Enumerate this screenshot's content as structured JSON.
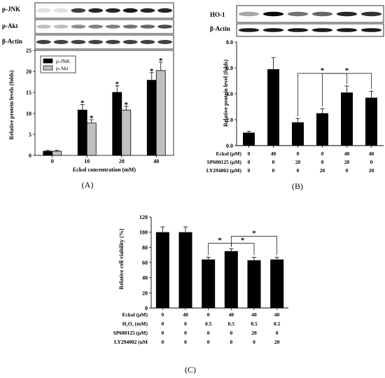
{
  "panels": {
    "A": "(A)",
    "B": "(B)",
    "C": "(C)"
  },
  "panelA": {
    "blots": [
      "p-JNK",
      "p-Akt",
      "β-Actin"
    ],
    "xlabel": "Eckol concentration (mM)",
    "ylabel": "Relative protein levels (folds)"
  },
  "panelB": {
    "blots": [
      "HO-1",
      "β-Actin"
    ],
    "ylabel": "Relative protein level (folds)"
  },
  "panelC": {
    "ylabel": "Relative cell viability (%)"
  },
  "chart_data": [
    {
      "type": "bar",
      "panel": "A",
      "categories": [
        "0",
        "10",
        "20",
        "40"
      ],
      "series": [
        {
          "name": "p-JNK",
          "values": [
            1.0,
            10.8,
            15.0,
            17.9
          ],
          "errors": [
            0.2,
            1.3,
            1.6,
            1.8
          ],
          "color": "#000000"
        },
        {
          "name": "p-Akt",
          "values": [
            1.0,
            7.7,
            10.8,
            20.2
          ],
          "errors": [
            0.2,
            0.8,
            0.9,
            2.0
          ],
          "color": "#c0c0c0"
        }
      ],
      "significance": [
        {
          "category": 1,
          "series": 0,
          "label": "*"
        },
        {
          "category": 1,
          "series": 1,
          "label": "*"
        },
        {
          "category": 2,
          "series": 0,
          "label": "*"
        },
        {
          "category": 2,
          "series": 1,
          "label": "*"
        },
        {
          "category": 3,
          "series": 0,
          "label": "*"
        },
        {
          "category": 3,
          "series": 1,
          "label": "*"
        }
      ],
      "xlabel": "Eckol concentration (mM)",
      "ylabel": "Relative protein levels (folds)",
      "ylim": [
        0,
        25
      ],
      "yticks": [
        "0",
        "5",
        "10",
        "15",
        "20",
        "25"
      ],
      "legend": "top-left"
    },
    {
      "type": "bar",
      "panel": "B",
      "values": [
        1.0,
        5.9,
        1.8,
        2.5,
        4.1,
        3.7
      ],
      "errors": [
        0.1,
        0.9,
        0.3,
        0.35,
        0.5,
        0.5
      ],
      "conditions": [
        {
          "label": "Eckol  (μM)",
          "values": [
            "0",
            "40",
            "0",
            "0",
            "40",
            "40"
          ]
        },
        {
          "label": "SP600125 (μM)",
          "values": [
            "0",
            "0",
            "20",
            "0",
            "20",
            "0"
          ]
        },
        {
          "label": "LY294002 (μM)",
          "values": [
            "0",
            "0",
            "0",
            "20",
            "0",
            "20"
          ]
        }
      ],
      "comparisons": [
        {
          "from": 2,
          "to": 4,
          "label": "*"
        },
        {
          "from": 3,
          "to": 5,
          "label": "*"
        }
      ],
      "ylabel": "Relative protein level (folds)",
      "ylim": [
        0,
        8
      ],
      "yticks": [
        "0.0",
        "2.0",
        "4.0",
        "6.0",
        "8.0"
      ]
    },
    {
      "type": "bar",
      "panel": "C",
      "values": [
        100,
        100,
        64,
        75,
        63,
        64
      ],
      "errors": [
        7,
        7,
        3,
        3,
        4,
        3
      ],
      "conditions": [
        {
          "label": "Eckol  (μM)",
          "values": [
            "0",
            "40",
            "0",
            "40",
            "40",
            "40"
          ]
        },
        {
          "label": "H₂O₂  (mM)",
          "values": [
            "0",
            "0",
            "0.5",
            "0.5",
            "0.5",
            "0.5"
          ]
        },
        {
          "label": "SP600125 (μM)",
          "values": [
            "0",
            "0",
            "0",
            "0",
            "20",
            "0"
          ]
        },
        {
          "label": "LY294002 (uM",
          "values": [
            "0",
            "0",
            "0",
            "0",
            "0",
            "20"
          ]
        }
      ],
      "comparisons": [
        {
          "from": 2,
          "to": 3,
          "label": "*"
        },
        {
          "from": 3,
          "to": 4,
          "label": "*"
        },
        {
          "from": 3,
          "to": 5,
          "label": "*"
        }
      ],
      "ylabel": "Relative cell viability (%)",
      "ylim": [
        0,
        120
      ],
      "yticks": [
        "0",
        "20",
        "40",
        "60",
        "80",
        "100",
        "120"
      ]
    }
  ]
}
